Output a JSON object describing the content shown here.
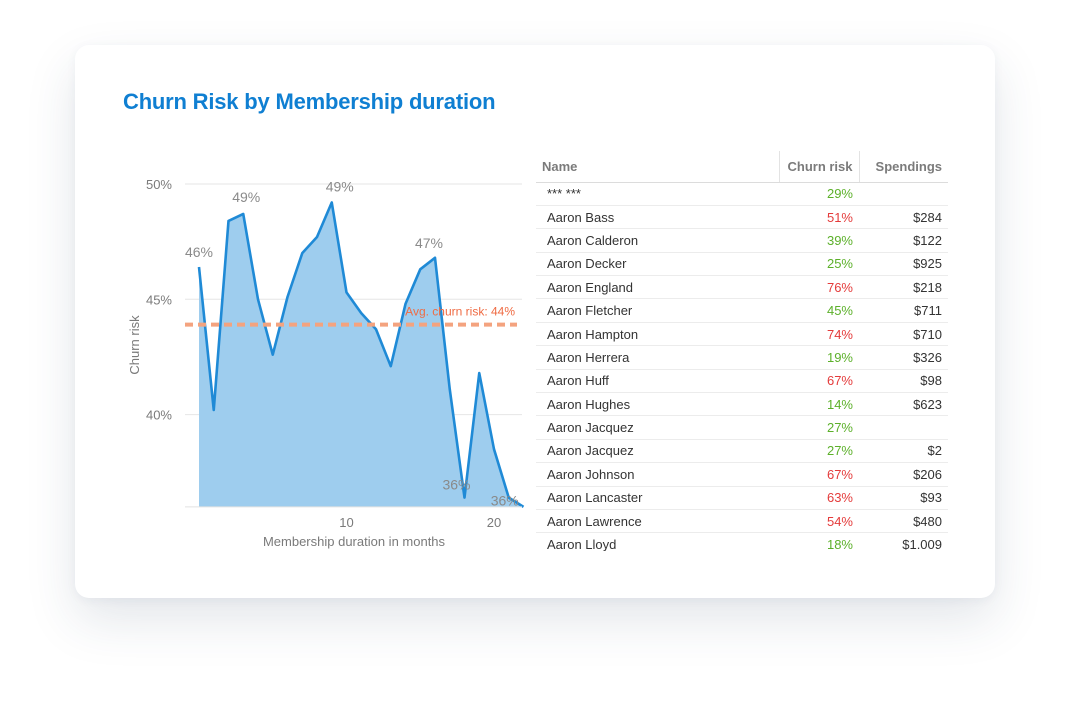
{
  "title": "Churn Risk by Membership duration",
  "colors": {
    "title": "#0f7fd2",
    "area_fill": "#9ecdee",
    "line": "#1f8ad6",
    "avg_line": "#f4a37f",
    "avg_label": "#ef6b43",
    "positive": "#5cb02a",
    "negative": "#e43b3b"
  },
  "chart_data": {
    "type": "area",
    "xlabel": "Membership duration in months",
    "ylabel": "Churn risk",
    "xlim": [
      0,
      22.5
    ],
    "ylim": [
      36,
      50
    ],
    "x_ticks": [
      {
        "value": 10,
        "label": "10"
      },
      {
        "value": 20,
        "label": "20"
      }
    ],
    "y_ticks": [
      {
        "value": 50,
        "label": "50%"
      },
      {
        "value": 45,
        "label": "45%"
      },
      {
        "value": 40,
        "label": "40%"
      }
    ],
    "grid": "horizontal",
    "series": [
      {
        "x": [
          0,
          1,
          2,
          3,
          4,
          5,
          6,
          7,
          8,
          9,
          10,
          11,
          12,
          13,
          14,
          15,
          16,
          17,
          18,
          19,
          20,
          21,
          22
        ],
        "y": [
          46.4,
          40.2,
          48.4,
          48.7,
          45.0,
          42.6,
          45.1,
          47.0,
          47.7,
          49.2,
          45.3,
          44.4,
          43.7,
          42.1,
          44.8,
          46.3,
          46.8,
          41.1,
          36.4,
          41.8,
          38.5,
          36.4,
          36.0
        ]
      }
    ],
    "data_labels": [
      {
        "x": 0,
        "y": 46.4,
        "text": "46%"
      },
      {
        "x": 3,
        "y": 48.7,
        "text": "49%"
      },
      {
        "x": 9,
        "y": 49.2,
        "text": "49%"
      },
      {
        "x": 16,
        "y": 46.8,
        "text": "47%"
      },
      {
        "x": 18,
        "y": 36.4,
        "text": "36%"
      },
      {
        "x": 21,
        "y": 36.4,
        "text": "36%"
      }
    ],
    "reference_line": {
      "y": 43.9,
      "label": "Avg. churn risk: 44%"
    }
  },
  "table": {
    "columns": [
      "Name",
      "Churn risk",
      "Spendings"
    ],
    "rows": [
      {
        "name": "*** ***",
        "risk": "29%",
        "spend": "",
        "level": "green"
      },
      {
        "name": "Aaron Bass",
        "risk": "51%",
        "spend": "$284",
        "level": "red"
      },
      {
        "name": "Aaron Calderon",
        "risk": "39%",
        "spend": "$122",
        "level": "green"
      },
      {
        "name": "Aaron Decker",
        "risk": "25%",
        "spend": "$925",
        "level": "green"
      },
      {
        "name": "Aaron England",
        "risk": "76%",
        "spend": "$218",
        "level": "red"
      },
      {
        "name": "Aaron Fletcher",
        "risk": "45%",
        "spend": "$711",
        "level": "green"
      },
      {
        "name": "Aaron Hampton",
        "risk": "74%",
        "spend": "$710",
        "level": "red"
      },
      {
        "name": "Aaron Herrera",
        "risk": "19%",
        "spend": "$326",
        "level": "green"
      },
      {
        "name": "Aaron Huff",
        "risk": "67%",
        "spend": "$98",
        "level": "red"
      },
      {
        "name": "Aaron Hughes",
        "risk": "14%",
        "spend": "$623",
        "level": "green"
      },
      {
        "name": "Aaron Jacquez",
        "risk": "27%",
        "spend": "",
        "level": "green"
      },
      {
        "name": "Aaron Jacquez",
        "risk": "27%",
        "spend": "$2",
        "level": "green"
      },
      {
        "name": "Aaron Johnson",
        "risk": "67%",
        "spend": "$206",
        "level": "red"
      },
      {
        "name": "Aaron Lancaster",
        "risk": "63%",
        "spend": "$93",
        "level": "red"
      },
      {
        "name": "Aaron Lawrence",
        "risk": "54%",
        "spend": "$480",
        "level": "red"
      },
      {
        "name": "Aaron Lloyd",
        "risk": "18%",
        "spend": "$1.009",
        "level": "green"
      }
    ]
  }
}
